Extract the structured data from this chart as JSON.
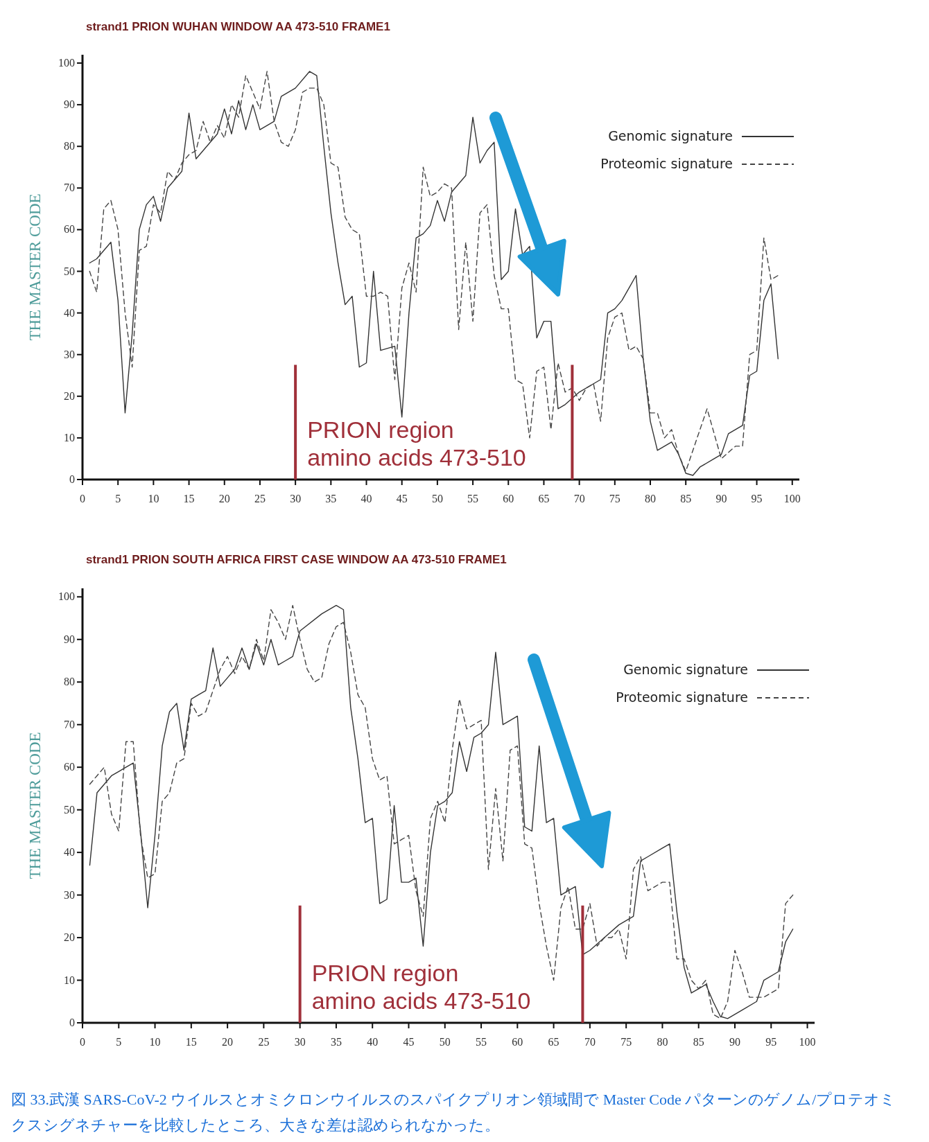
{
  "chart_data": [
    {
      "type": "line",
      "title": "strand1 PRION WUHAN WINDOW AA 473-510 FRAME1",
      "ylabel": "THE MASTER CODE",
      "xlim": [
        0,
        101
      ],
      "ylim": [
        0,
        102
      ],
      "xticks": [
        0,
        5,
        10,
        15,
        20,
        25,
        30,
        35,
        40,
        45,
        50,
        55,
        60,
        65,
        70,
        75,
        80,
        85,
        90,
        95,
        100
      ],
      "yticks": [
        0,
        10,
        20,
        30,
        40,
        50,
        60,
        70,
        80,
        90,
        100
      ],
      "legend": "top right",
      "ref_lines": [
        {
          "axis": "x",
          "value": 30,
          "color": "#a0303a"
        },
        {
          "axis": "x",
          "value": 69,
          "color": "#a0303a"
        }
      ],
      "annotations": [
        "PRION region",
        "amino acids 473-510"
      ],
      "series": [
        {
          "name": "Genomic signature",
          "color": "#333333",
          "line_style": "solid",
          "x": [
            1,
            2,
            3,
            4,
            5,
            6,
            7,
            8,
            9,
            10,
            11,
            12,
            13,
            14,
            15,
            16,
            17,
            18,
            19,
            20,
            21,
            22,
            23,
            24,
            25,
            26,
            27,
            28,
            30,
            32,
            33,
            34,
            35,
            36,
            37,
            38,
            39,
            40,
            41,
            42,
            44,
            45,
            46,
            47,
            48,
            49,
            50,
            51,
            52,
            53,
            54,
            55,
            56,
            57,
            58,
            59,
            60,
            61,
            62,
            63,
            64,
            65,
            66,
            67,
            68,
            70,
            72,
            73,
            74,
            75,
            76,
            77,
            78,
            79,
            80,
            81,
            82,
            83,
            84,
            85,
            86,
            87,
            89,
            90,
            91,
            93,
            94,
            95,
            96,
            97,
            98
          ],
          "values": [
            52,
            53,
            55,
            57,
            43,
            16,
            35,
            60,
            66,
            68,
            62,
            70,
            72,
            74,
            88,
            77,
            79,
            81,
            83,
            89,
            83,
            91,
            84,
            90,
            84,
            85,
            86,
            92,
            94,
            98,
            97,
            80,
            64,
            52,
            42,
            44,
            27,
            28,
            50,
            31,
            32,
            15,
            40,
            58,
            59,
            61,
            67,
            62,
            69,
            71,
            73,
            87,
            76,
            79,
            81,
            48,
            50,
            65,
            54,
            56,
            34,
            38,
            38,
            17,
            18,
            21,
            23,
            24,
            40,
            41,
            43,
            46,
            49,
            29,
            14,
            7,
            8,
            9,
            6,
            1.5,
            1,
            3,
            5,
            6,
            11,
            13,
            25,
            26,
            43,
            47,
            29
          ]
        },
        {
          "name": "Proteomic signature",
          "color": "#444444",
          "line_style": "dashed",
          "x": [
            1,
            2,
            3,
            4,
            5,
            6,
            7,
            8,
            9,
            10,
            11,
            12,
            13,
            14,
            15,
            16,
            17,
            18,
            19,
            20,
            21,
            22,
            23,
            24,
            25,
            26,
            27,
            28,
            29,
            30,
            31,
            32,
            33,
            34,
            35,
            36,
            37,
            38,
            39,
            40,
            41,
            42,
            43,
            44,
            45,
            46,
            47,
            48,
            49,
            50,
            51,
            52,
            53,
            54,
            55,
            56,
            57,
            58,
            59,
            60,
            61,
            62,
            63,
            64,
            65,
            66,
            67,
            68,
            69,
            70,
            71,
            72,
            73,
            74,
            75,
            76,
            77,
            78,
            79,
            80,
            81,
            82,
            83,
            84,
            85,
            86,
            88,
            90,
            92,
            93,
            94,
            95,
            96,
            97,
            98
          ],
          "values": [
            50,
            45,
            65,
            67,
            60,
            40,
            27,
            55,
            56,
            66,
            64,
            74,
            72,
            76,
            78,
            79,
            86,
            81,
            85,
            82,
            90,
            87,
            97,
            93,
            89,
            98,
            86,
            81,
            80,
            84,
            93,
            94,
            94,
            90,
            76,
            75,
            63,
            60,
            59,
            44,
            44,
            45,
            44,
            24,
            46,
            52,
            45,
            75,
            68,
            69,
            71,
            70,
            36,
            57,
            38,
            64,
            66,
            49,
            41,
            41,
            24,
            23,
            10,
            26,
            27,
            12,
            28,
            21,
            22,
            19,
            22,
            23,
            14,
            34,
            39,
            40,
            31,
            32,
            29,
            16,
            16,
            10,
            12,
            6,
            2,
            7,
            17,
            5,
            8,
            8,
            30,
            31,
            58,
            48,
            49
          ]
        }
      ]
    },
    {
      "type": "line",
      "title": "strand1 PRION SOUTH AFRICA FIRST CASE WINDOW AA 473-510 FRAME1",
      "ylabel": "THE MASTER CODE",
      "xlim": [
        0,
        101
      ],
      "ylim": [
        0,
        102
      ],
      "xticks": [
        0,
        5,
        10,
        15,
        20,
        25,
        30,
        35,
        40,
        45,
        50,
        55,
        60,
        65,
        70,
        75,
        80,
        85,
        90,
        95,
        100
      ],
      "yticks": [
        0,
        10,
        20,
        30,
        40,
        50,
        60,
        70,
        80,
        90,
        100
      ],
      "legend": "top right",
      "ref_lines": [
        {
          "axis": "x",
          "value": 30,
          "color": "#a0303a"
        },
        {
          "axis": "x",
          "value": 69,
          "color": "#a0303a"
        }
      ],
      "annotations": [
        "PRION region",
        "amino acids 473-510",
        "図 33.武漢 SARS-CoV-2 ウイルスとオミクロンウイルスのスパイクプリオン領域間で Master Code パターンのゲノム/プロテオミクスシグネチャーを比較したところ、大きな差は認められなかった。"
      ],
      "series": [
        {
          "name": "Genomic signature",
          "color": "#333333",
          "line_style": "solid",
          "x": [
            1,
            2,
            3,
            4,
            5,
            6,
            7,
            8,
            9,
            10,
            11,
            12,
            13,
            14,
            15,
            16,
            17,
            18,
            19,
            20,
            21,
            22,
            23,
            24,
            25,
            26,
            27,
            28,
            29,
            30,
            33,
            35,
            36,
            37,
            38,
            39,
            40,
            41,
            42,
            43,
            44,
            45,
            46,
            47,
            48,
            49,
            50,
            51,
            52,
            53,
            54,
            55,
            56,
            57,
            58,
            59,
            60,
            61,
            62,
            63,
            64,
            65,
            66,
            67,
            68,
            69,
            70,
            72,
            74,
            76,
            77,
            78,
            80,
            81,
            82,
            83,
            84,
            85,
            86,
            87,
            88,
            89,
            91,
            93,
            94,
            96,
            97,
            98
          ],
          "values": [
            37,
            54,
            56,
            58,
            59,
            60,
            61,
            45,
            27,
            44,
            65,
            73,
            75,
            64,
            76,
            77,
            78,
            88,
            79,
            81,
            83,
            88,
            83,
            89,
            84,
            90,
            84,
            85,
            86,
            92,
            96,
            98,
            97,
            74,
            62,
            47,
            48,
            28,
            29,
            51,
            33,
            33,
            34,
            18,
            40,
            51,
            52,
            54,
            66,
            59,
            67,
            68,
            70,
            87,
            70,
            71,
            72,
            46,
            45,
            65,
            47,
            48,
            30,
            31,
            32,
            16,
            17,
            20,
            23,
            25,
            38,
            39,
            41,
            42,
            26,
            13,
            7,
            8,
            9,
            5,
            1.5,
            1,
            3,
            5,
            10,
            12,
            19,
            22
          ]
        },
        {
          "name": "Proteomic signature",
          "color": "#444444",
          "line_style": "dashed",
          "x": [
            1,
            2,
            3,
            4,
            5,
            6,
            7,
            8,
            9,
            10,
            11,
            12,
            13,
            14,
            15,
            16,
            17,
            18,
            19,
            20,
            21,
            22,
            23,
            24,
            25,
            26,
            27,
            28,
            29,
            30,
            31,
            32,
            33,
            34,
            35,
            36,
            37,
            38,
            39,
            40,
            41,
            42,
            43,
            44,
            45,
            46,
            47,
            48,
            49,
            50,
            51,
            52,
            53,
            54,
            55,
            56,
            57,
            58,
            59,
            60,
            61,
            62,
            63,
            64,
            65,
            66,
            67,
            68,
            69,
            70,
            71,
            72,
            73,
            74,
            75,
            76,
            77,
            78,
            79,
            80,
            81,
            82,
            83,
            84,
            85,
            86,
            87,
            88,
            89,
            90,
            91,
            92,
            93,
            94,
            95,
            96,
            97,
            98
          ],
          "values": [
            56,
            58,
            60,
            49,
            45,
            66,
            66,
            44,
            34,
            35,
            52,
            54,
            61,
            62,
            75,
            72,
            73,
            78,
            83,
            86,
            82,
            86,
            83,
            90,
            85,
            97,
            94,
            90,
            98,
            90,
            83,
            80,
            81,
            89,
            93,
            94,
            87,
            77,
            74,
            62,
            57,
            58,
            42,
            43,
            44,
            31,
            25,
            48,
            52,
            47,
            64,
            76,
            69,
            70,
            71,
            36,
            55,
            38,
            64,
            65,
            42,
            41,
            28,
            18,
            10,
            27,
            32,
            22,
            22,
            28,
            18,
            20,
            20,
            22,
            15,
            36,
            39,
            31,
            32,
            33,
            33,
            15,
            15,
            10,
            8,
            10,
            2,
            1,
            5,
            17,
            12,
            6,
            6,
            6,
            7,
            8,
            28,
            30
          ]
        }
      ]
    }
  ]
}
